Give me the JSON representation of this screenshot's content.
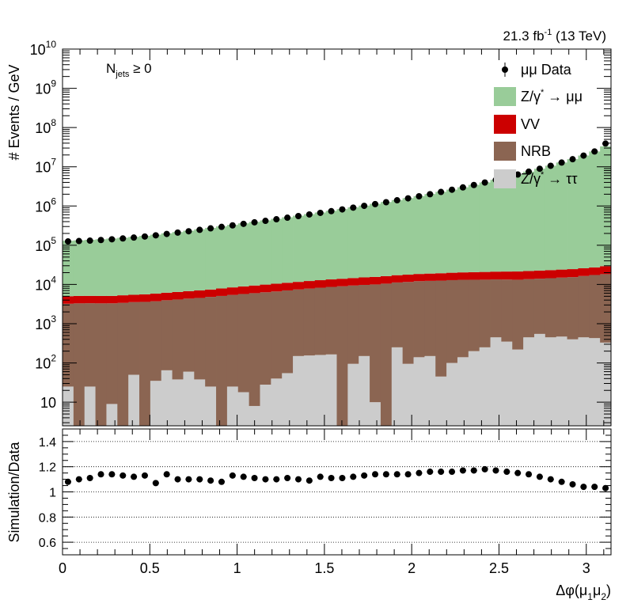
{
  "chart_data": [
    {
      "type": "area",
      "title": "",
      "lumi_label": "21.3 fb",
      "lumi_sup": "-1",
      "lumi_energy": " (13 TeV)",
      "category_label": "N",
      "category_sub": "jets",
      "category_cut": " ≥ 0",
      "ylabel": "# Events / GeV",
      "yscale": "log",
      "ylim": [
        2.5,
        10000000000
      ],
      "xlim": [
        0,
        3.1416
      ],
      "bins": 50,
      "ytick_labels": [
        {
          "value": 10,
          "base": "10",
          "exp": ""
        },
        {
          "value": 100,
          "base": "10",
          "exp": "2"
        },
        {
          "value": 1000,
          "base": "10",
          "exp": "3"
        },
        {
          "value": 10000,
          "base": "10",
          "exp": "4"
        },
        {
          "value": 100000,
          "base": "10",
          "exp": "5"
        },
        {
          "value": 1000000,
          "base": "10",
          "exp": "6"
        },
        {
          "value": 10000000,
          "base": "10",
          "exp": "7"
        },
        {
          "value": 100000000,
          "base": "10",
          "exp": "8"
        },
        {
          "value": 1000000000,
          "base": "10",
          "exp": "9"
        },
        {
          "value": 10000000000,
          "base": "10",
          "exp": "10"
        }
      ],
      "legend_position": "top-right",
      "legend": [
        {
          "key": "data",
          "pre": "μμ Data",
          "sup": "",
          "post": ""
        },
        {
          "key": "zmm",
          "pre": "Z/γ",
          "sup": "*",
          "post": " → μμ"
        },
        {
          "key": "vv",
          "pre": "VV",
          "sup": "",
          "post": ""
        },
        {
          "key": "nrb",
          "pre": "NRB",
          "sup": "",
          "post": ""
        },
        {
          "key": "ztt",
          "pre": "Z/γ",
          "sup": "*",
          "post": " → ττ"
        }
      ],
      "colors": {
        "zmm": "#99cc99",
        "vv": "#cc0000",
        "nrb": "#8b6552",
        "ztt": "#cccccc",
        "data": "#000000"
      },
      "stack_order_bottom_to_top": [
        "ztt",
        "nrb",
        "vv",
        "zmm"
      ],
      "series": [
        {
          "key": "ztt",
          "values": [
            25,
            0,
            25,
            0,
            9,
            0,
            50,
            0,
            35,
            65,
            38,
            60,
            38,
            25,
            0,
            25,
            18,
            8,
            28,
            40,
            55,
            150,
            155,
            160,
            165,
            0,
            95,
            150,
            10,
            0,
            250,
            95,
            140,
            150,
            45,
            100,
            140,
            200,
            250,
            450,
            350,
            220,
            450,
            550,
            450,
            470,
            400,
            450,
            430,
            330
          ]
        },
        {
          "key": "nrb",
          "values": [
            3200,
            3300,
            3300,
            3300,
            3300,
            3400,
            3500,
            3600,
            3700,
            3900,
            4100,
            4300,
            4500,
            4800,
            5100,
            5400,
            5700,
            6000,
            6300,
            6600,
            7000,
            7300,
            7700,
            8100,
            8500,
            9000,
            9300,
            9600,
            10000,
            10500,
            11000,
            11500,
            12000,
            12200,
            12500,
            12800,
            13000,
            13000,
            13000,
            13000,
            13000,
            13000,
            13200,
            13500,
            14000,
            14500,
            15000,
            16000,
            17000,
            18000
          ]
        },
        {
          "key": "vv",
          "values": [
            1800,
            1800,
            1800,
            1800,
            1800,
            1900,
            1900,
            2000,
            2100,
            2200,
            2300,
            2400,
            2500,
            2600,
            2800,
            3000,
            3200,
            3400,
            3600,
            3800,
            4000,
            4200,
            4400,
            4600,
            4800,
            5000,
            5200,
            5400,
            5600,
            5800,
            6000,
            6200,
            6400,
            6600,
            6800,
            7000,
            7200,
            7400,
            7600,
            7800,
            8000,
            8200,
            8400,
            8600,
            8800,
            9000,
            9200,
            9400,
            9800,
            11000
          ]
        },
        {
          "key": "zmm",
          "values": [
            125000,
            128000,
            132000,
            137000,
            143000,
            150000,
            158000,
            168000,
            180000,
            195000,
            210000,
            228000,
            248000,
            270000,
            295000,
            322000,
            352000,
            385000,
            420000,
            460000,
            505000,
            555000,
            610000,
            670000,
            740000,
            820000,
            910000,
            1010000,
            1120000,
            1250000,
            1400000,
            1570000,
            1770000,
            2000000,
            2280000,
            2600000,
            2980000,
            3430000,
            3970000,
            4620000,
            5400000,
            6350000,
            7500000,
            8900000,
            10600000,
            12800000,
            15600000,
            19300000,
            24500000,
            33000000
          ]
        },
        {
          "key": "data",
          "name": "μμ Data",
          "values": [
            125000,
            128000,
            131000,
            136000,
            142000,
            149000,
            157000,
            167000,
            179000,
            194000,
            210000,
            227000,
            247000,
            269000,
            294000,
            321000,
            351000,
            384000,
            419000,
            459000,
            504000,
            554000,
            609000,
            669000,
            739000,
            819000,
            909000,
            1009000,
            1119000,
            1249000,
            1399000,
            1569000,
            1769000,
            1999000,
            2279000,
            2599000,
            2979000,
            3429000,
            3969000,
            4619000,
            5399000,
            6349000,
            7499000,
            8899000,
            10599000,
            12799000,
            15599000,
            19299000,
            24499000,
            39000000
          ]
        }
      ]
    },
    {
      "type": "scatter",
      "ylabel": "Simulation/Data",
      "xlabel_pre": "Δφ(μ",
      "xlabel_sub1": "1",
      "xlabel_mid": "μ",
      "xlabel_sub2": "2",
      "xlabel_post": ")",
      "ylim": [
        0.5,
        1.5
      ],
      "xlim": [
        0,
        3.1416
      ],
      "grid": true,
      "grid_y_values": [
        0.6,
        0.8,
        1.0,
        1.2,
        1.4
      ],
      "ytick_labels": [
        "0.6",
        "0.8",
        "1",
        "1.2",
        "1.4"
      ],
      "xtick_labels": [
        "0",
        "0.5",
        "1",
        "1.5",
        "2",
        "2.5",
        "3"
      ],
      "series": [
        {
          "name": "Simulation/Data",
          "values": [
            1.08,
            1.1,
            1.11,
            1.14,
            1.14,
            1.13,
            1.12,
            1.13,
            1.07,
            1.14,
            1.1,
            1.1,
            1.1,
            1.09,
            1.08,
            1.13,
            1.12,
            1.11,
            1.1,
            1.1,
            1.11,
            1.1,
            1.09,
            1.12,
            1.11,
            1.11,
            1.12,
            1.13,
            1.14,
            1.14,
            1.14,
            1.14,
            1.15,
            1.16,
            1.16,
            1.16,
            1.17,
            1.17,
            1.18,
            1.17,
            1.16,
            1.15,
            1.14,
            1.12,
            1.1,
            1.08,
            1.06,
            1.04,
            1.04,
            1.03
          ]
        }
      ]
    }
  ]
}
